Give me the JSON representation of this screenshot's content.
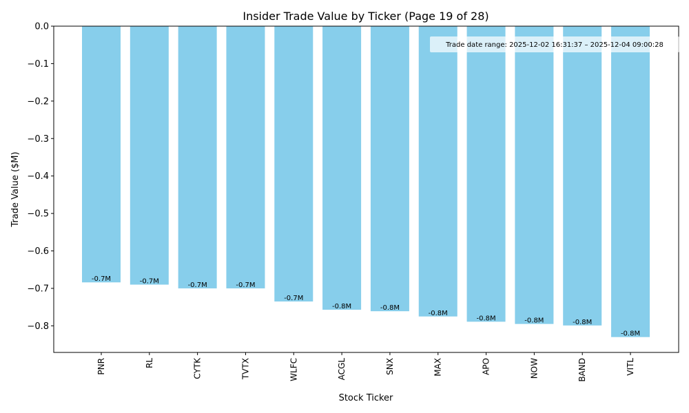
{
  "chart_data": {
    "type": "bar",
    "title": "Insider Trade Value by Ticker (Page 19 of 28)",
    "xlabel": "Stock Ticker",
    "ylabel": "Trade Value ($M)",
    "categories": [
      "PNR",
      "RL",
      "CYTK",
      "TVTX",
      "WLFC",
      "ACGL",
      "SNX",
      "MAX",
      "APO",
      "NOW",
      "BAND",
      "VITL"
    ],
    "values": [
      -0.684,
      -0.69,
      -0.7,
      -0.7,
      -0.735,
      -0.757,
      -0.761,
      -0.775,
      -0.789,
      -0.795,
      -0.799,
      -0.83
    ],
    "data_labels": [
      "-0.7M",
      "-0.7M",
      "-0.7M",
      "-0.7M",
      "-0.7M",
      "-0.8M",
      "-0.8M",
      "-0.8M",
      "-0.8M",
      "-0.8M",
      "-0.8M",
      "-0.8M"
    ],
    "ylim": [
      -0.871,
      0.0
    ],
    "yticks": [
      0.0,
      -0.1,
      -0.2,
      -0.3,
      -0.4,
      -0.5,
      -0.6,
      -0.7,
      -0.8
    ],
    "ytick_labels": [
      "0.0",
      "−0.1",
      "−0.2",
      "−0.3",
      "−0.4",
      "−0.5",
      "−0.6",
      "−0.7",
      "−0.8"
    ],
    "bar_color": "#87CEEB",
    "grid": false,
    "annotation": "Trade date range: 2025-12-02 16:31:37 – 2025-12-04 09:00:28"
  }
}
